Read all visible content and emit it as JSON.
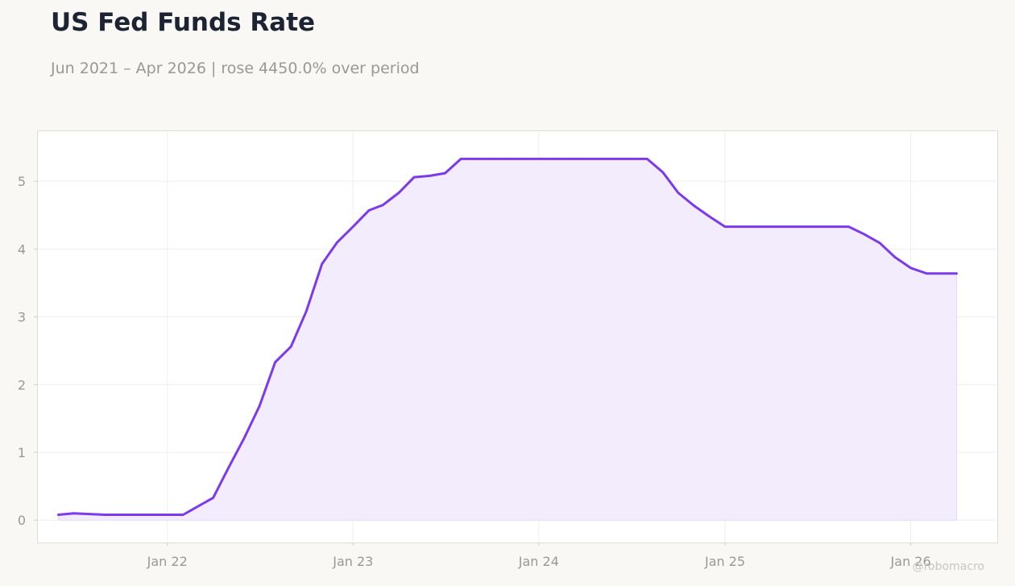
{
  "title": "US Fed Funds Rate",
  "subtitle": "Jun 2021 – Apr 2026 | rose 4450.0% over period",
  "watermark": "@robomacro",
  "colors": {
    "background": "#f9f8f5",
    "plot_background": "#ffffff",
    "line": "#7c3aed",
    "fill": "#f2ecfd",
    "grid": "#f0eeeb",
    "axis_text": "#9a9893"
  },
  "chart_data": {
    "type": "area",
    "title": "US Fed Funds Rate",
    "subtitle": "Jun 2021 – Apr 2026 | rose 4450.0% over period",
    "xlabel": "",
    "ylabel": "",
    "x_ticks": [
      {
        "label": "Jan 22",
        "date": "2022-01-01"
      },
      {
        "label": "Jan 23",
        "date": "2023-01-01"
      },
      {
        "label": "Jan 24",
        "date": "2024-01-01"
      },
      {
        "label": "Jan 25",
        "date": "2025-01-01"
      },
      {
        "label": "Jan 26",
        "date": "2026-01-01"
      }
    ],
    "y_ticks": [
      0,
      1,
      2,
      3,
      4,
      5
    ],
    "xlim": [
      "2021-04-20",
      "2026-06-20"
    ],
    "ylim": [
      -0.33,
      5.75
    ],
    "grid": true,
    "legend": "none",
    "series": [
      {
        "dates": [
          "2021-06-01",
          "2021-07-01",
          "2021-09-01",
          "2021-10-01",
          "2021-11-01",
          "2021-12-01",
          "2022-01-01",
          "2022-02-01",
          "2022-04-01",
          "2022-05-01",
          "2022-06-01",
          "2022-07-01",
          "2022-08-01",
          "2022-09-01",
          "2022-10-01",
          "2022-11-01",
          "2022-12-01",
          "2023-01-01",
          "2023-02-01",
          "2023-03-01",
          "2023-04-01",
          "2023-05-01",
          "2023-06-01",
          "2023-07-01",
          "2023-08-01",
          "2023-09-01",
          "2023-10-01",
          "2023-11-01",
          "2023-12-01",
          "2024-01-01",
          "2024-02-01",
          "2024-03-01",
          "2024-04-01",
          "2024-05-01",
          "2024-06-01",
          "2024-07-01",
          "2024-08-01",
          "2024-09-01",
          "2024-10-01",
          "2024-11-01",
          "2024-12-01",
          "2025-01-01",
          "2025-02-01",
          "2025-03-01",
          "2025-04-01",
          "2025-05-01",
          "2025-06-01",
          "2025-07-01",
          "2025-08-01",
          "2025-09-01",
          "2025-10-01",
          "2025-11-01",
          "2025-12-01",
          "2026-01-01",
          "2026-02-01",
          "2026-03-01",
          "2026-04-01"
        ],
        "values": [
          0.08,
          0.1,
          0.08,
          0.08,
          0.08,
          0.08,
          0.08,
          0.08,
          0.33,
          0.77,
          1.21,
          1.68,
          2.33,
          2.56,
          3.08,
          3.78,
          4.1,
          4.33,
          4.57,
          4.65,
          4.83,
          5.06,
          5.08,
          5.12,
          5.33,
          5.33,
          5.33,
          5.33,
          5.33,
          5.33,
          5.33,
          5.33,
          5.33,
          5.33,
          5.33,
          5.33,
          5.33,
          5.13,
          4.83,
          4.64,
          4.48,
          4.33,
          4.33,
          4.33,
          4.33,
          4.33,
          4.33,
          4.33,
          4.33,
          4.33,
          4.22,
          4.09,
          3.88,
          3.72,
          3.64,
          3.64,
          3.64
        ]
      }
    ]
  }
}
